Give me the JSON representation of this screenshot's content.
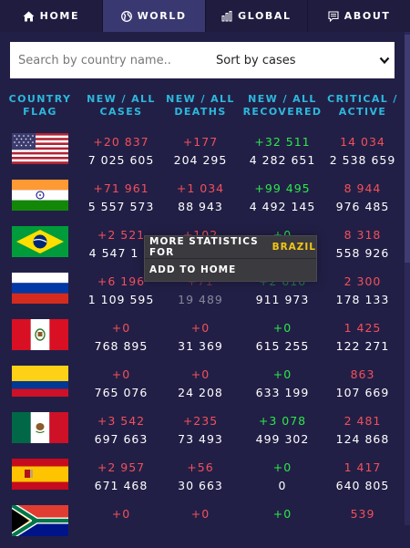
{
  "nav": {
    "tabs": [
      {
        "label": "HOME",
        "icon": "home-icon"
      },
      {
        "label": "WORLD",
        "icon": "globe-icon",
        "active": true
      },
      {
        "label": "GLOBAL",
        "icon": "bar-chart-icon"
      },
      {
        "label": "ABOUT",
        "icon": "message-icon"
      }
    ]
  },
  "search": {
    "placeholder": "Search by country name.."
  },
  "sort": {
    "selected": "Sort by cases"
  },
  "table": {
    "headers": [
      [
        "COUNTRY",
        "FLAG"
      ],
      [
        "NEW / ALL",
        "CASES"
      ],
      [
        "NEW / ALL",
        "DEATHS"
      ],
      [
        "NEW / ALL",
        "RECOVERED"
      ],
      [
        "CRITICAL /",
        "ACTIVE"
      ]
    ],
    "rows": [
      {
        "country": "United States",
        "flag": "usa-flag",
        "new_cases": "+20 837",
        "all_cases": "7 025 605",
        "new_deaths": "+177",
        "all_deaths": "204 295",
        "new_recovered": "+32 511",
        "all_recovered": "4 282 651",
        "critical": "14 034",
        "active": "2 538 659"
      },
      {
        "country": "India",
        "flag": "india-flag",
        "new_cases": "+71 961",
        "all_cases": "5 557 573",
        "new_deaths": "+1 034",
        "all_deaths": "88 943",
        "new_recovered": "+99 495",
        "all_recovered": "4 492 145",
        "critical": "8 944",
        "active": "976 485"
      },
      {
        "country": "Brazil",
        "flag": "brazil-flag",
        "new_cases": "+2 521",
        "all_cases": "4 547 1",
        "new_deaths": "+102",
        "all_deaths": "",
        "new_recovered": "+0",
        "all_recovered": "",
        "critical": "8 318",
        "active": "558 926"
      },
      {
        "country": "Russia",
        "flag": "russia-flag",
        "new_cases": "+6 196",
        "all_cases": "1 109 595",
        "new_deaths": "+71",
        "all_deaths": "19 489",
        "new_recovered": "+2 616",
        "all_recovered": "911 973",
        "critical": "2 300",
        "active": "178 133"
      },
      {
        "country": "Peru",
        "flag": "peru-flag",
        "new_cases": "+0",
        "all_cases": "768 895",
        "new_deaths": "+0",
        "all_deaths": "31 369",
        "new_recovered": "+0",
        "all_recovered": "615 255",
        "critical": "1 425",
        "active": "122 271"
      },
      {
        "country": "Colombia",
        "flag": "colombia-flag",
        "new_cases": "+0",
        "all_cases": "765 076",
        "new_deaths": "+0",
        "all_deaths": "24 208",
        "new_recovered": "+0",
        "all_recovered": "633 199",
        "critical": "863",
        "active": "107 669"
      },
      {
        "country": "Mexico",
        "flag": "mexico-flag",
        "new_cases": "+3 542",
        "all_cases": "697 663",
        "new_deaths": "+235",
        "all_deaths": "73 493",
        "new_recovered": "+3 078",
        "all_recovered": "499 302",
        "critical": "2 481",
        "active": "124 868"
      },
      {
        "country": "Spain",
        "flag": "spain-flag",
        "new_cases": "+2 957",
        "all_cases": "671 468",
        "new_deaths": "+56",
        "all_deaths": "30 663",
        "new_recovered": "+0",
        "all_recovered": "0",
        "critical": "1 417",
        "active": "640 805"
      },
      {
        "country": "South Africa",
        "flag": "south-africa-flag",
        "new_cases": "+0",
        "all_cases": "",
        "new_deaths": "+0",
        "all_deaths": "",
        "new_recovered": "+0",
        "all_recovered": "",
        "critical": "539",
        "active": ""
      }
    ]
  },
  "context_menu": {
    "more_stats_label": "MORE STATISTICS FOR",
    "country": "BRAZIL",
    "add_home_label": "ADD TO HOME"
  },
  "colors": {
    "background": "#221f46",
    "header_text": "#2cb8dd",
    "increase_red": "#f2505a",
    "recovered_green": "#2be84a",
    "menu_highlight": "#f3c614"
  }
}
